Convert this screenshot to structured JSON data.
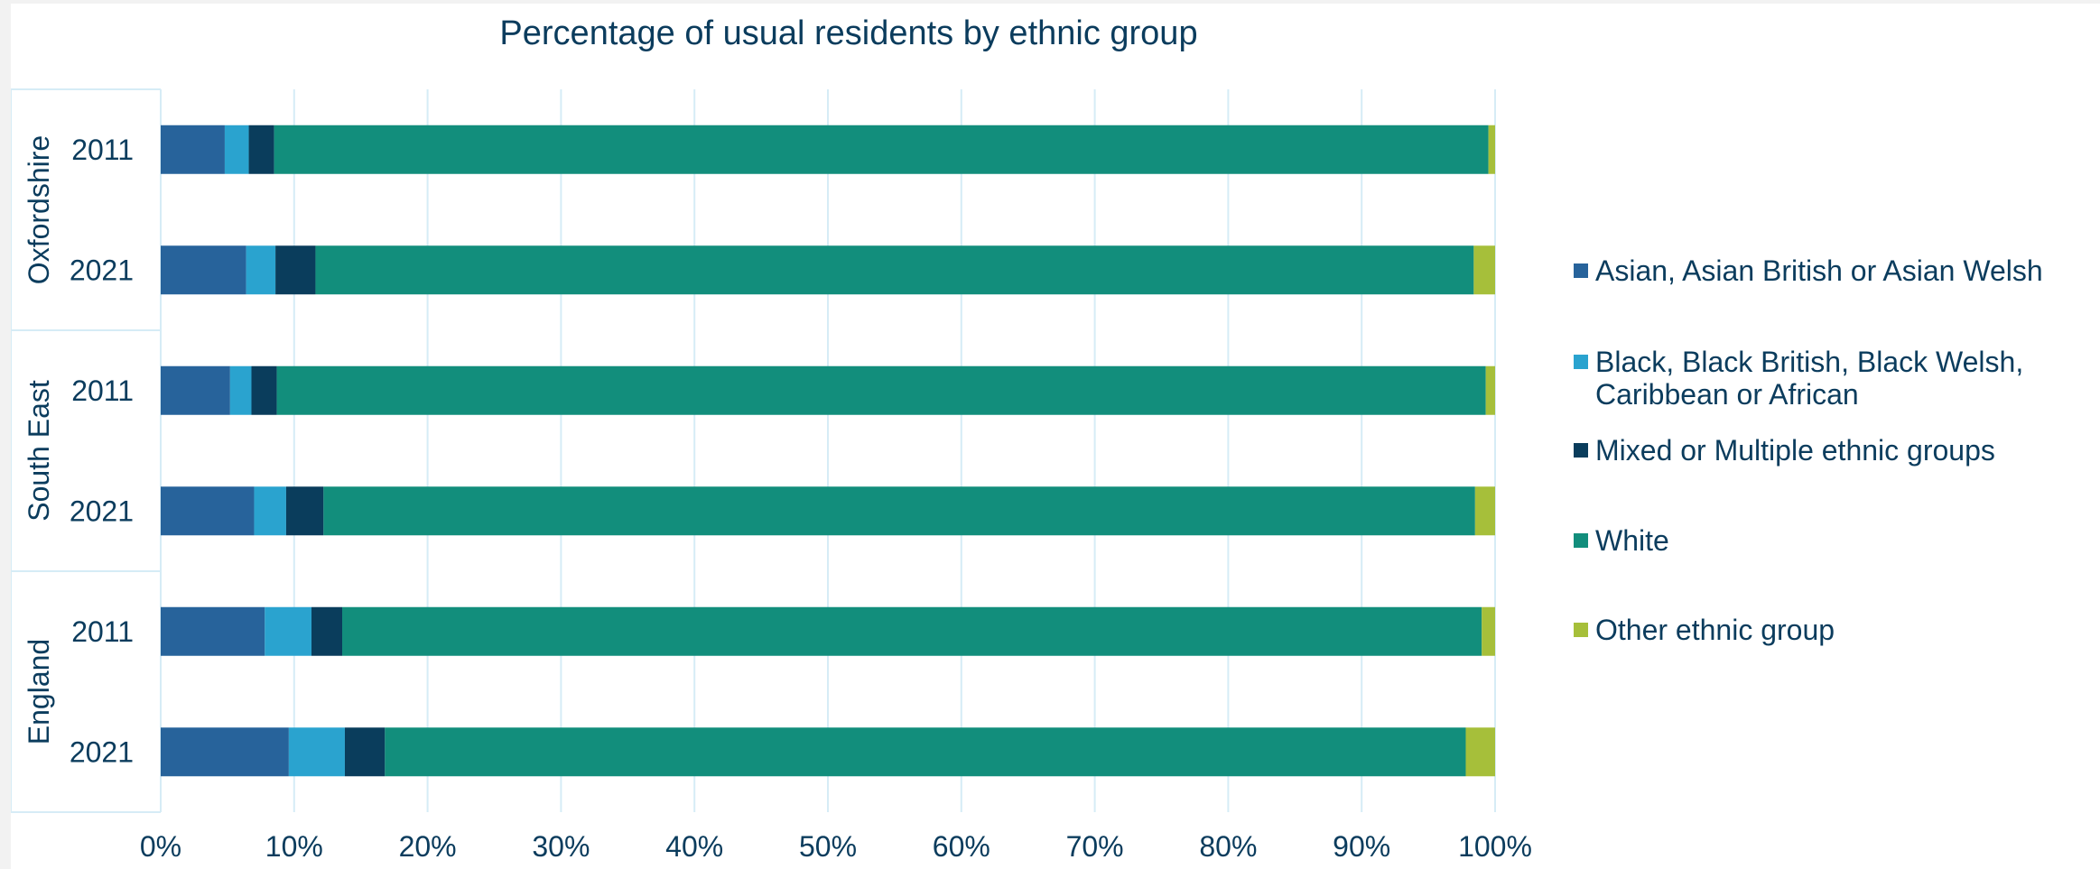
{
  "chart_data": {
    "type": "bar",
    "orientation": "horizontal",
    "stacked": "percent",
    "title": "Percentage of usual residents by ethnic group",
    "xlim": [
      0,
      100
    ],
    "x_ticks": [
      "0%",
      "10%",
      "20%",
      "30%",
      "40%",
      "50%",
      "60%",
      "70%",
      "80%",
      "90%",
      "100%"
    ],
    "grid": true,
    "legend_position": "right",
    "groups": [
      {
        "name": "Oxfordshire",
        "categories": [
          "2011",
          "2021"
        ]
      },
      {
        "name": "South East",
        "categories": [
          "2011",
          "2021"
        ]
      },
      {
        "name": "England",
        "categories": [
          "2011",
          "2021"
        ]
      }
    ],
    "series": [
      {
        "name": "Asian, Asian British or Asian Welsh",
        "color": "#27639b",
        "values": [
          4.8,
          6.4,
          5.2,
          7.0,
          7.8,
          9.6
        ]
      },
      {
        "name": "Black, Black British, Black Welsh, Caribbean or African",
        "color": "#2aa3cf",
        "values": [
          1.8,
          2.2,
          1.6,
          2.4,
          3.5,
          4.2
        ]
      },
      {
        "name": "Mixed or Multiple ethnic groups",
        "color": "#0a3d5c",
        "values": [
          1.9,
          3.0,
          1.9,
          2.8,
          2.3,
          3.0
        ]
      },
      {
        "name": "White",
        "color": "#128e7c",
        "values": [
          91.0,
          86.8,
          90.6,
          86.3,
          85.4,
          81.0
        ]
      },
      {
        "name": "Other ethnic group",
        "color": "#a6bf3a",
        "values": [
          0.5,
          1.6,
          0.7,
          1.5,
          1.0,
          2.2
        ]
      }
    ]
  }
}
